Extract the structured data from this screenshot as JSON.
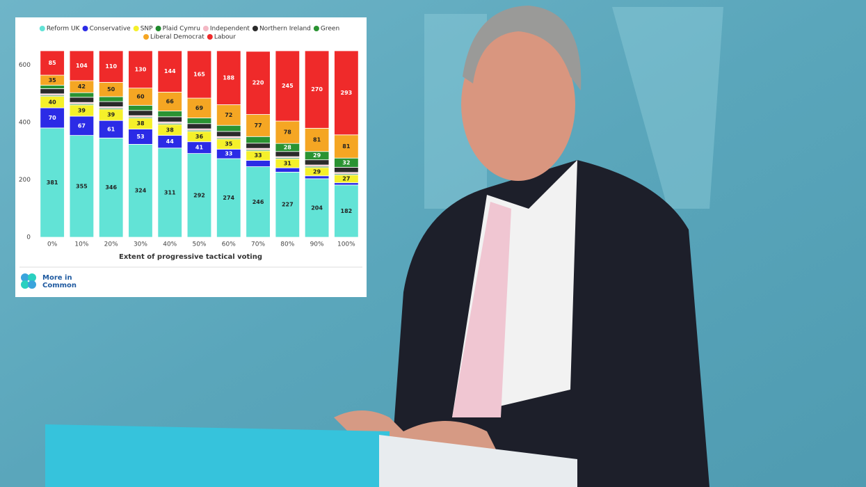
{
  "chart_data": {
    "type": "stacked-bar",
    "x_label": "Extent of progressive tactical voting",
    "source": "More in Common",
    "categories": [
      "0%",
      "10%",
      "20%",
      "30%",
      "40%",
      "50%",
      "60%",
      "70%",
      "80%",
      "90%",
      "100%"
    ],
    "ylim": [
      0,
      650
    ],
    "yticks": [
      0,
      200,
      400,
      600
    ],
    "grid": false,
    "series": [
      {
        "name": "Reform UK",
        "color": "#62e3d6",
        "values": [
          381,
          355,
          346,
          324,
          311,
          292,
          274,
          246,
          227,
          204,
          182
        ]
      },
      {
        "name": "Conservative",
        "color": "#2b2be6",
        "values": [
          70,
          67,
          61,
          53,
          44,
          41,
          33,
          22,
          15,
          10,
          8
        ]
      },
      {
        "name": "SNP",
        "color": "#f5f02a",
        "values": [
          40,
          39,
          39,
          38,
          38,
          36,
          35,
          33,
          31,
          29,
          27
        ]
      },
      {
        "name": "Plaid Cymru",
        "color": "#1f8a2c",
        "values": [
          4,
          4,
          4,
          4,
          4,
          4,
          4,
          4,
          4,
          4,
          4
        ]
      },
      {
        "name": "Independent",
        "color": "#f4b8c4",
        "values": [
          5,
          5,
          5,
          5,
          5,
          5,
          5,
          5,
          4,
          5,
          5
        ]
      },
      {
        "name": "Northern Ireland",
        "color": "#2a2a2a",
        "values": [
          18,
          18,
          18,
          18,
          18,
          18,
          18,
          18,
          18,
          18,
          18
        ]
      },
      {
        "name": "Green",
        "color": "#2a9332",
        "values": [
          12,
          16,
          17,
          18,
          20,
          20,
          21,
          23,
          28,
          29,
          32
        ]
      },
      {
        "name": "Liberal Democrat",
        "color": "#f5a623",
        "values": [
          35,
          42,
          50,
          60,
          66,
          69,
          72,
          77,
          78,
          81,
          81
        ]
      },
      {
        "name": "Labour",
        "color": "#ef2a2a",
        "values": [
          85,
          104,
          110,
          130,
          144,
          165,
          188,
          220,
          245,
          270,
          293
        ]
      }
    ]
  }
}
